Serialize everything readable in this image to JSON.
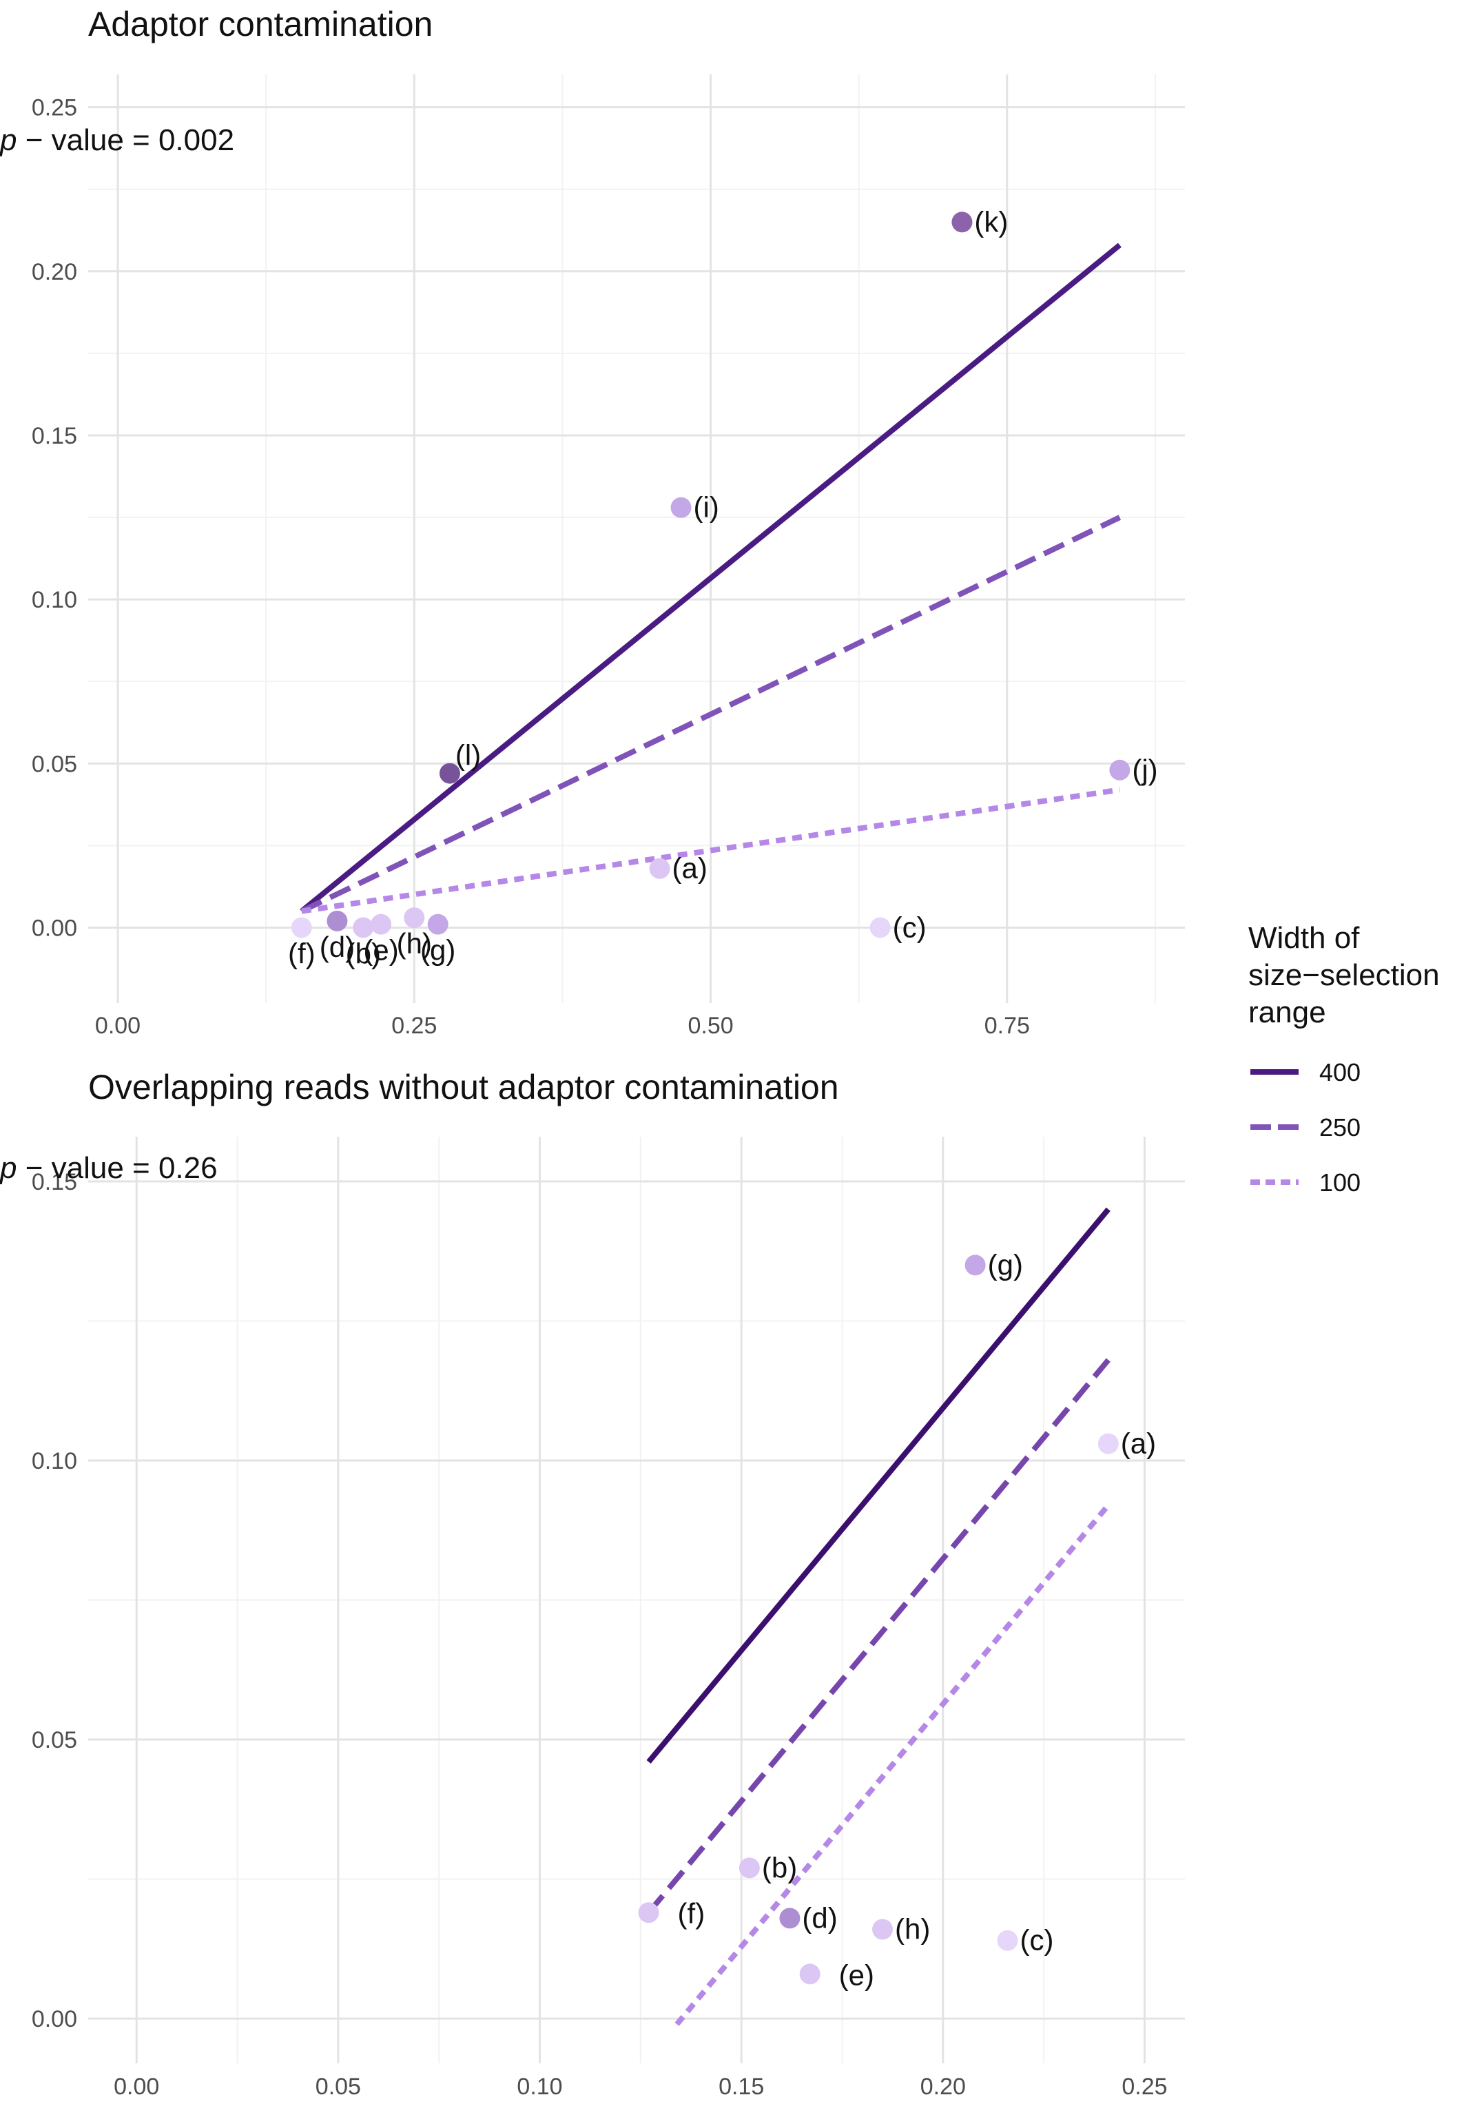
{
  "chart_data": [
    {
      "type": "scatter",
      "title": "Adaptor contamination",
      "annotation": {
        "italic_prefix": "p",
        "rest": " − value = 0.002"
      },
      "xlim": [
        -0.025,
        0.9
      ],
      "ylim": [
        -0.023,
        0.26
      ],
      "x_ticks": [
        0.0,
        0.25,
        0.5,
        0.75
      ],
      "x_tick_labels": [
        "0.00",
        "0.25",
        "0.50",
        "0.75"
      ],
      "x_minor_ticks": [
        0.125,
        0.375,
        0.625,
        0.875
      ],
      "y_ticks": [
        0.0,
        0.05,
        0.1,
        0.15,
        0.2,
        0.25
      ],
      "y_tick_labels": [
        "0.00",
        "0.05",
        "0.10",
        "0.15",
        "0.20",
        "0.25"
      ],
      "y_minor_ticks": [
        0.025,
        0.075,
        0.125,
        0.175,
        0.225
      ],
      "points": [
        {
          "label": "(a)",
          "x": 0.457,
          "y": 0.018,
          "color": "#dcc6f4",
          "label_side": "right"
        },
        {
          "label": "(b)",
          "x": 0.207,
          "y": 0.0,
          "color": "#dcc6f4",
          "label_side": "below"
        },
        {
          "label": "(c)",
          "x": 0.643,
          "y": 0.0,
          "color": "#e6d6f9",
          "label_side": "right"
        },
        {
          "label": "(d)",
          "x": 0.185,
          "y": 0.002,
          "color": "#ae8ed3",
          "label_side": "below"
        },
        {
          "label": "(e)",
          "x": 0.222,
          "y": 0.001,
          "color": "#dcc6f4",
          "label_side": "below"
        },
        {
          "label": "(f)",
          "x": 0.155,
          "y": 0.0,
          "color": "#e6d6f9",
          "label_side": "below"
        },
        {
          "label": "(g)",
          "x": 0.27,
          "y": 0.001,
          "color": "#c3a7e6",
          "label_side": "below"
        },
        {
          "label": "(h)",
          "x": 0.25,
          "y": 0.003,
          "color": "#dcc6f4",
          "label_side": "below"
        },
        {
          "label": "(i)",
          "x": 0.475,
          "y": 0.128,
          "color": "#c3a7e6",
          "label_side": "right"
        },
        {
          "label": "(j)",
          "x": 0.845,
          "y": 0.048,
          "color": "#c3a7e6",
          "label_side": "right"
        },
        {
          "label": "(k)",
          "x": 0.712,
          "y": 0.215,
          "color": "#8c63ab",
          "label_side": "right"
        },
        {
          "label": "(l)",
          "x": 0.28,
          "y": 0.047,
          "color": "#77549a",
          "label_side": "above-right"
        }
      ],
      "lines": [
        {
          "width": "400",
          "x": [
            0.155,
            0.845
          ],
          "y": [
            0.005,
            0.208
          ],
          "color": "#4a1b82",
          "dash": "solid"
        },
        {
          "width": "250",
          "x": [
            0.155,
            0.845
          ],
          "y": [
            0.005,
            0.125
          ],
          "color": "#8053b8",
          "dash": "long"
        },
        {
          "width": "100",
          "x": [
            0.155,
            0.845
          ],
          "y": [
            0.005,
            0.042
          ],
          "color": "#b587e6",
          "dash": "short"
        }
      ]
    },
    {
      "type": "scatter",
      "title": "Overlapping reads without adaptor contamination",
      "annotation": {
        "italic_prefix": "p",
        "rest": " − value = 0.26"
      },
      "xlim": [
        -0.012,
        0.26
      ],
      "ylim": [
        -0.008,
        0.158
      ],
      "x_ticks": [
        0.0,
        0.05,
        0.1,
        0.15,
        0.2,
        0.25
      ],
      "x_tick_labels": [
        "0.00",
        "0.05",
        "0.10",
        "0.15",
        "0.20",
        "0.25"
      ],
      "x_minor_ticks": [
        0.025,
        0.075,
        0.125,
        0.175,
        0.225
      ],
      "y_ticks": [
        0.0,
        0.05,
        0.1,
        0.15
      ],
      "y_tick_labels": [
        "0.00",
        "0.05",
        "0.10",
        "0.15"
      ],
      "y_minor_ticks": [
        0.025,
        0.075,
        0.125
      ],
      "points": [
        {
          "label": "(a)",
          "x": 0.241,
          "y": 0.103,
          "color": "#e6d6f9",
          "label_side": "right"
        },
        {
          "label": "(b)",
          "x": 0.152,
          "y": 0.027,
          "color": "#dcc6f4",
          "label_side": "right"
        },
        {
          "label": "(c)",
          "x": 0.216,
          "y": 0.014,
          "color": "#e6d6f9",
          "label_side": "right"
        },
        {
          "label": "(d)",
          "x": 0.162,
          "y": 0.018,
          "color": "#ae8ed3",
          "label_side": "right"
        },
        {
          "label": "(e)",
          "x": 0.167,
          "y": 0.008,
          "color": "#dcc6f4",
          "label_side": "right-far"
        },
        {
          "label": "(f)",
          "x": 0.127,
          "y": 0.019,
          "color": "#dcc6f4",
          "label_side": "right-far"
        },
        {
          "label": "(g)",
          "x": 0.208,
          "y": 0.135,
          "color": "#c3a7e6",
          "label_side": "right"
        },
        {
          "label": "(h)",
          "x": 0.185,
          "y": 0.016,
          "color": "#dcc6f4",
          "label_side": "right"
        }
      ],
      "lines": [
        {
          "width": "400",
          "x": [
            0.127,
            0.241
          ],
          "y": [
            0.046,
            0.145
          ],
          "color": "#3b0f6e",
          "dash": "solid"
        },
        {
          "width": "250",
          "x": [
            0.127,
            0.241
          ],
          "y": [
            0.019,
            0.118
          ],
          "color": "#7646ad",
          "dash": "long"
        },
        {
          "width": "100",
          "x": [
            0.134,
            0.241
          ],
          "y": [
            -0.001,
            0.092
          ],
          "color": "#b587e6",
          "dash": "short"
        }
      ]
    }
  ],
  "legend": {
    "title_lines": [
      "Width of",
      "size−selection",
      "range"
    ],
    "items": [
      {
        "label": "400",
        "color": "#4a1b82",
        "dash": "solid"
      },
      {
        "label": "250",
        "color": "#8053b8",
        "dash": "long"
      },
      {
        "label": "100",
        "color": "#b587e6",
        "dash": "short"
      }
    ]
  }
}
